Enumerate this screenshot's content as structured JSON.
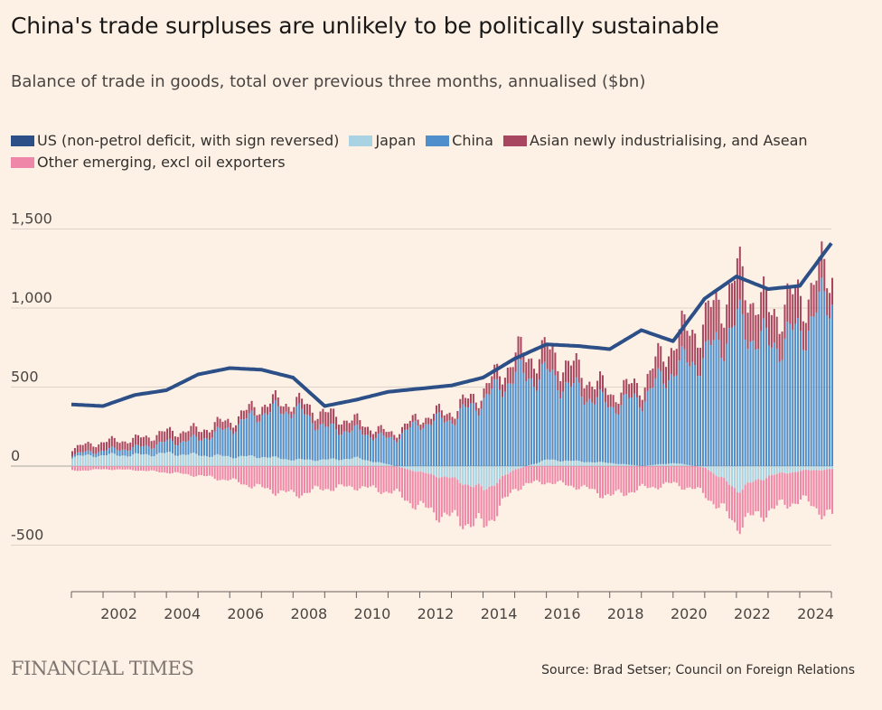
{
  "header": {
    "title": "China's trade surpluses are unlikely to be politically sustainable",
    "subtitle": "Balance of trade in goods, total over previous three months, annualised ($bn)"
  },
  "legend": [
    {
      "label": "US (non-petrol deficit, with sign reversed)",
      "color": "#2b4f86"
    },
    {
      "label": "Japan",
      "color": "#a9d3e3"
    },
    {
      "label": "China",
      "color": "#4f8fcb"
    },
    {
      "label": "Asian newly industrialising, and Asean",
      "color": "#a8465f"
    },
    {
      "label": "Other emerging, excl oil exporters",
      "color": "#ef87a8"
    }
  ],
  "footer": {
    "logo": "FINANCIAL TIMES",
    "source": "Source: Brad Setser; Council on Foreign Relations"
  },
  "chart_data": {
    "type": "bar",
    "xlim": [
      2001,
      2025
    ],
    "ylim": [
      -800,
      1600
    ],
    "xticks": [
      2002,
      2004,
      2006,
      2008,
      2010,
      2012,
      2014,
      2016,
      2018,
      2020,
      2022,
      2024
    ],
    "xtick_labels": [
      "2002",
      "2004",
      "2006",
      "2008",
      "2010",
      "2012",
      "2014",
      "2016",
      "2018",
      "2020",
      "2022",
      "2024"
    ],
    "yticks": [
      -500,
      0,
      500,
      1000,
      1500
    ],
    "ytick_labels": [
      "-500",
      "0",
      "500",
      "1,000",
      "1,500"
    ],
    "grid": true,
    "stacking": "positive components stack upward from zero, negative components stack downward",
    "x": [
      2001,
      2002,
      2003,
      2004,
      2005,
      2006,
      2007,
      2008,
      2009,
      2010,
      2011,
      2012,
      2013,
      2014,
      2015,
      2016,
      2017,
      2018,
      2019,
      2020,
      2021,
      2022,
      2023,
      2024,
      2025
    ],
    "series": [
      {
        "name": "Japan",
        "kind": "bar",
        "color": "#a9d3e3",
        "values": [
          60,
          70,
          70,
          80,
          70,
          60,
          60,
          40,
          40,
          50,
          10,
          -40,
          -80,
          -150,
          -20,
          40,
          30,
          20,
          0,
          20,
          -10,
          -150,
          -60,
          -30,
          -20
        ]
      },
      {
        "name": "China",
        "kind": "bar",
        "color": "#4f8fcb",
        "values": [
          15,
          30,
          45,
          70,
          100,
          180,
          280,
          320,
          200,
          170,
          160,
          270,
          300,
          420,
          580,
          540,
          440,
          360,
          430,
          600,
          700,
          900,
          760,
          850,
          1080
        ]
      },
      {
        "name": "Asian newly industrialising, and Asean",
        "kind": "bar",
        "color": "#a8465f",
        "values": [
          40,
          55,
          55,
          65,
          60,
          50,
          55,
          50,
          90,
          60,
          35,
          40,
          50,
          60,
          120,
          140,
          130,
          80,
          90,
          180,
          220,
          290,
          210,
          220,
          180
        ]
      },
      {
        "name": "Other emerging, excl oil exporters",
        "kind": "bar",
        "color": "#ef87a8",
        "values": [
          -30,
          -20,
          -25,
          -40,
          -60,
          -90,
          -140,
          -180,
          -140,
          -130,
          -160,
          -220,
          -250,
          -230,
          -120,
          -100,
          -130,
          -190,
          -140,
          -110,
          -170,
          -220,
          -220,
          -180,
          -300
        ]
      },
      {
        "name": "US (non-petrol deficit, with sign reversed)",
        "kind": "line",
        "color": "#2b4f86",
        "values": [
          390,
          380,
          450,
          480,
          580,
          620,
          610,
          560,
          380,
          420,
          470,
          490,
          510,
          560,
          680,
          770,
          760,
          740,
          860,
          790,
          1060,
          1200,
          1120,
          1140,
          1410
        ]
      }
    ]
  }
}
